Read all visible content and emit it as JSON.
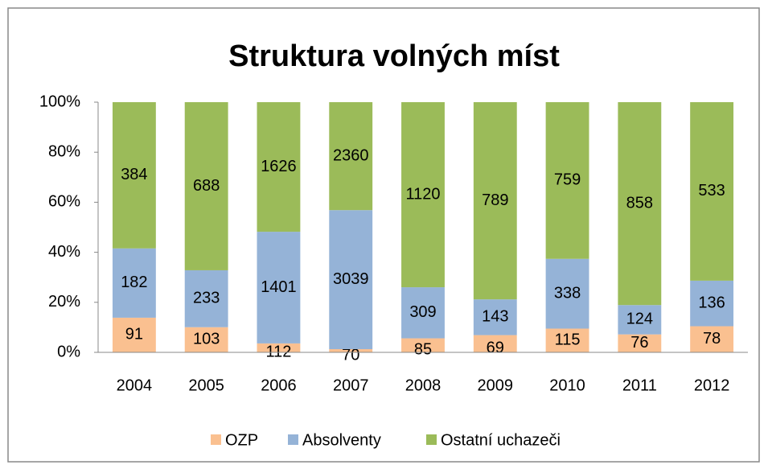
{
  "chart_data": {
    "type": "stacked_bar_100",
    "title": "Struktura volných míst",
    "categories": [
      "2004",
      "2005",
      "2006",
      "2007",
      "2008",
      "2009",
      "2010",
      "2011",
      "2012"
    ],
    "series": [
      {
        "name": "OZP",
        "color": "#fac090",
        "values": [
          91,
          103,
          112,
          70,
          85,
          69,
          115,
          76,
          78
        ]
      },
      {
        "name": "Absolventy",
        "color": "#95b3d7",
        "values": [
          182,
          233,
          1401,
          3039,
          309,
          143,
          338,
          124,
          136
        ]
      },
      {
        "name": "Ostatní uchazeči",
        "color": "#9bbb59",
        "values": [
          384,
          688,
          1626,
          2360,
          1120,
          789,
          759,
          858,
          533
        ]
      }
    ],
    "ylim": [
      0,
      100
    ],
    "yticks": [
      {
        "value": 0,
        "label": "0%"
      },
      {
        "value": 20,
        "label": "20%"
      },
      {
        "value": 40,
        "label": "40%"
      },
      {
        "value": 60,
        "label": "60%"
      },
      {
        "value": 80,
        "label": "80%"
      },
      {
        "value": 100,
        "label": "100%"
      }
    ],
    "legend": "bottom"
  }
}
